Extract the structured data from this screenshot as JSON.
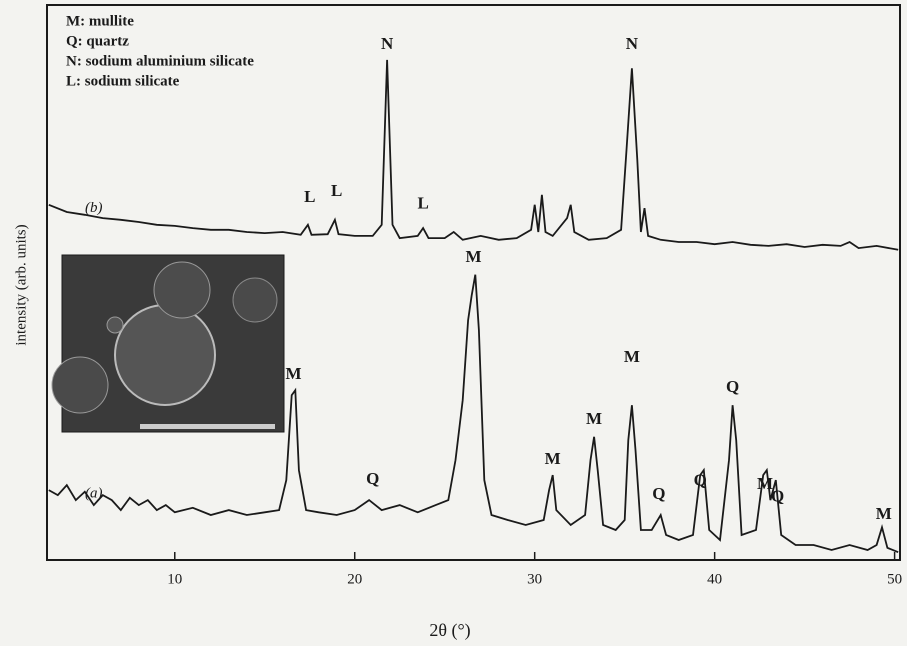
{
  "chart_data": {
    "type": "line",
    "x_label": "2θ (°)",
    "y_label": "intensity (arb. units)",
    "xlim": [
      2.9,
      50.3
    ],
    "xticks": [
      10,
      20,
      30,
      40,
      50
    ],
    "ylim": [
      0,
      100
    ],
    "key": [
      "M: mullite",
      "Q: quartz",
      "N: sodium aluminium silicate",
      "L: sodium silicate"
    ],
    "series": [
      {
        "name": "(a)",
        "color": "#1a1a1a",
        "x": [
          3.0,
          3.5,
          4,
          4.5,
          5,
          5.5,
          6,
          6.5,
          7,
          7.5,
          8,
          8.5,
          9,
          9.5,
          10,
          11,
          12,
          13,
          14,
          15,
          15.8,
          16.2,
          16.5,
          16.7,
          16.9,
          17.3,
          18,
          19,
          20,
          20.8,
          21.5,
          22.5,
          23.5,
          24.5,
          25.2,
          25.6,
          26,
          26.3,
          26.5,
          26.7,
          26.9,
          27.2,
          27.6,
          28.5,
          29.5,
          30.5,
          30.8,
          31,
          31.2,
          32,
          32.8,
          33.1,
          33.3,
          33.5,
          33.8,
          34.5,
          35,
          35.2,
          35.4,
          35.6,
          35.9,
          36.5,
          37,
          37.3,
          38,
          38.8,
          39.2,
          39.4,
          39.7,
          40.3,
          40.8,
          41,
          41.2,
          41.5,
          42.3,
          42.7,
          42.9,
          43.1,
          43.4,
          43.7,
          44.5,
          45.5,
          46.5,
          47.5,
          48.5,
          49,
          49.3,
          49.6,
          50.2
        ],
        "values": [
          12.6,
          11.7,
          13.5,
          10.8,
          12.3,
          9.9,
          11.7,
          10.8,
          9.0,
          11.2,
          9.9,
          10.8,
          9.0,
          9.9,
          8.6,
          9.4,
          8.1,
          9.0,
          8.1,
          8.6,
          9.0,
          14.4,
          29.7,
          30.6,
          16.2,
          9.0,
          8.6,
          8.1,
          9.0,
          10.8,
          9.0,
          9.9,
          8.6,
          9.9,
          10.8,
          18.0,
          28.8,
          43.2,
          47.7,
          51.4,
          41.4,
          14.4,
          8.1,
          7.2,
          6.3,
          7.2,
          12.6,
          15.3,
          9.0,
          6.3,
          8.1,
          18.0,
          22.2,
          16.2,
          6.3,
          5.4,
          7.2,
          21.6,
          27.9,
          19.8,
          5.4,
          5.4,
          8.1,
          4.5,
          3.6,
          4.5,
          15.3,
          16.2,
          5.4,
          3.6,
          18.0,
          27.9,
          21.6,
          4.5,
          5.4,
          15.3,
          16.2,
          10.8,
          14.4,
          4.5,
          2.7,
          2.7,
          1.8,
          2.7,
          1.8,
          2.7,
          5.9,
          2.2,
          1.4
        ]
      },
      {
        "name": "(b)",
        "color": "#1a1a1a",
        "x": [
          3,
          4,
          5,
          6,
          7,
          8,
          9,
          10,
          11,
          12,
          13,
          14,
          15,
          16,
          17,
          17.4,
          17.6,
          18.5,
          18.9,
          19.1,
          20,
          21,
          21.5,
          21.8,
          22.1,
          22.5,
          23.5,
          23.8,
          24.1,
          25,
          25.5,
          26,
          27,
          28,
          29,
          29.8,
          30,
          30.2,
          30.4,
          30.6,
          31,
          31.8,
          32,
          32.2,
          33,
          34,
          34.8,
          35.1,
          35.4,
          35.7,
          35.9,
          36.1,
          36.3,
          37,
          38,
          39,
          40,
          41,
          42,
          43,
          44,
          45,
          46,
          47,
          47.5,
          48,
          49,
          50.2
        ],
        "values": [
          64.0,
          62.7,
          62.2,
          61.6,
          61.3,
          60.9,
          60.4,
          60.2,
          59.8,
          59.5,
          59.5,
          59.1,
          58.9,
          59.1,
          58.6,
          60.4,
          58.6,
          58.7,
          61.3,
          58.7,
          58.4,
          58.4,
          60.4,
          90.1,
          60.4,
          58.0,
          58.4,
          59.8,
          58.0,
          58.0,
          59.1,
          57.7,
          58.4,
          57.7,
          58.0,
          59.5,
          64.0,
          59.1,
          65.8,
          59.1,
          58.4,
          61.6,
          64.0,
          59.1,
          57.7,
          58.0,
          59.5,
          73.9,
          88.6,
          72.1,
          59.1,
          63.4,
          58.4,
          57.7,
          57.3,
          57.3,
          56.9,
          57.3,
          56.8,
          56.6,
          56.9,
          56.4,
          56.8,
          56.6,
          57.3,
          56.2,
          56.6,
          55.9
        ]
      }
    ],
    "annotations": [
      {
        "text": "N",
        "x": 21.8,
        "y": 92.8
      },
      {
        "text": "N",
        "x": 35.4,
        "y": 92.8
      },
      {
        "text": "L",
        "x": 17.5,
        "y": 65.2
      },
      {
        "text": "L",
        "x": 19.0,
        "y": 66.3
      },
      {
        "text": "L",
        "x": 23.8,
        "y": 64.0
      },
      {
        "text": "M",
        "x": 26.6,
        "y": 54.4
      },
      {
        "text": "M",
        "x": 16.6,
        "y": 33.3
      },
      {
        "text": "Q",
        "x": 21.0,
        "y": 14.4
      },
      {
        "text": "M",
        "x": 31.0,
        "y": 18.0
      },
      {
        "text": "M",
        "x": 33.3,
        "y": 25.2
      },
      {
        "text": "M",
        "x": 35.4,
        "y": 36.4
      },
      {
        "text": "Q",
        "x": 36.9,
        "y": 11.7
      },
      {
        "text": "Q",
        "x": 39.2,
        "y": 14.1
      },
      {
        "text": "Q",
        "x": 41.0,
        "y": 31.0
      },
      {
        "text": "M",
        "x": 42.8,
        "y": 13.5
      },
      {
        "text": "Q",
        "x": 43.5,
        "y": 11.2
      },
      {
        "text": "M",
        "x": 49.4,
        "y": 8.1
      }
    ]
  }
}
